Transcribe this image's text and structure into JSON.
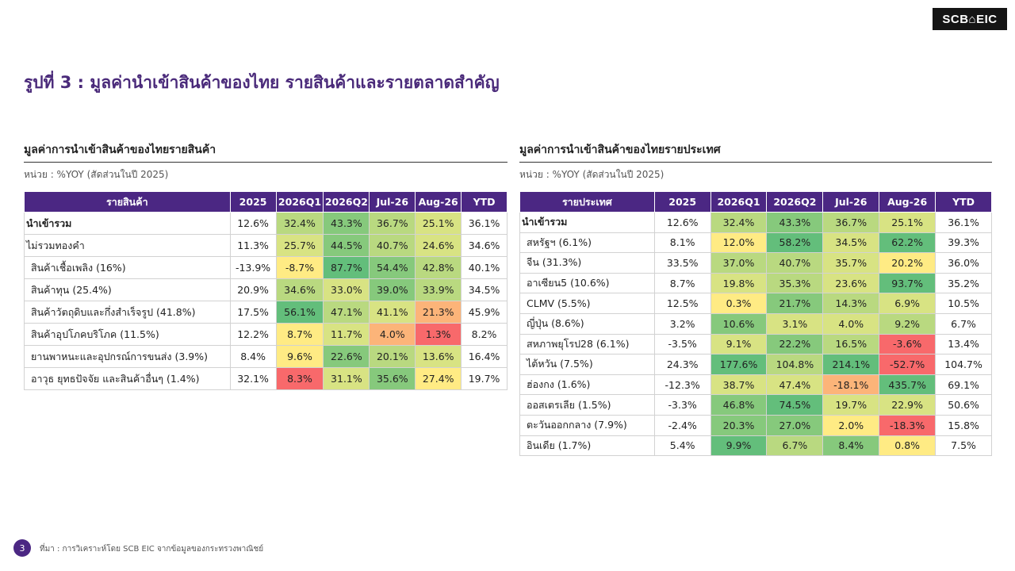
{
  "logo": "SCB⌂EIC",
  "page_title": "รูปที่ 3 : มูลค่านำเข้าสินค้าของไทย รายสินค้าและรายตลาดสำคัญ",
  "page_number": "3",
  "source": "ที่มา : การวิเคราะห์โดย SCB EIC จากข้อมูลของกระทรวงพาณิชย์",
  "colors": {
    "header_bg": "#4b2783",
    "title": "#4a2a7a",
    "scale_dark_green": "#63be7b",
    "scale_green": "#86c97c",
    "scale_light_green": "#b9d980",
    "scale_yellow_green": "#d8e383",
    "scale_yellow": "#ffeb84",
    "scale_orange": "#fcb479",
    "scale_red": "#f8696b"
  },
  "products_table": {
    "title": "มูลค่าการนำเข้าสินค้าของไทยรายสินค้า",
    "unit": "หน่วย : %YOY (สัดส่วนในปี 2025)",
    "columns": [
      "รายสินค้า",
      "2025",
      "2026Q1",
      "2026Q2",
      "Jul-26",
      "Aug-26",
      "YTD"
    ],
    "rows": [
      {
        "label": "นำเข้ารวม",
        "bold": true,
        "indent": false,
        "cells": [
          {
            "v": "12.6%",
            "c": null
          },
          {
            "v": "32.4%",
            "c": "#b9d980"
          },
          {
            "v": "43.3%",
            "c": "#86c97c"
          },
          {
            "v": "36.7%",
            "c": "#b9d980"
          },
          {
            "v": "25.1%",
            "c": "#d8e383"
          },
          {
            "v": "36.1%",
            "c": null
          }
        ]
      },
      {
        "label": "ไม่รวมทองคำ",
        "bold": false,
        "indent": false,
        "cells": [
          {
            "v": "11.3%",
            "c": null
          },
          {
            "v": "25.7%",
            "c": "#d8e383"
          },
          {
            "v": "44.5%",
            "c": "#86c97c"
          },
          {
            "v": "40.7%",
            "c": "#b9d980"
          },
          {
            "v": "24.6%",
            "c": "#d8e383"
          },
          {
            "v": "34.6%",
            "c": null
          }
        ]
      },
      {
        "label": "สินค้าเชื้อเพลิง (16%)",
        "bold": false,
        "indent": true,
        "cells": [
          {
            "v": "-13.9%",
            "c": null
          },
          {
            "v": "-8.7%",
            "c": "#ffeb84"
          },
          {
            "v": "87.7%",
            "c": "#63be7b"
          },
          {
            "v": "54.4%",
            "c": "#86c97c"
          },
          {
            "v": "42.8%",
            "c": "#b9d980"
          },
          {
            "v": "40.1%",
            "c": null
          }
        ]
      },
      {
        "label": "สินค้าทุน (25.4%)",
        "bold": false,
        "indent": true,
        "cells": [
          {
            "v": "20.9%",
            "c": null
          },
          {
            "v": "34.6%",
            "c": "#b9d980"
          },
          {
            "v": "33.0%",
            "c": "#d8e383"
          },
          {
            "v": "39.0%",
            "c": "#86c97c"
          },
          {
            "v": "33.9%",
            "c": "#b9d980"
          },
          {
            "v": "34.5%",
            "c": null
          }
        ]
      },
      {
        "label": "สินค้าวัตถุดิบและกึ่งสำเร็จรูป (41.8%)",
        "bold": false,
        "indent": true,
        "cells": [
          {
            "v": "17.5%",
            "c": null
          },
          {
            "v": "56.1%",
            "c": "#63be7b"
          },
          {
            "v": "47.1%",
            "c": "#b9d980"
          },
          {
            "v": "41.1%",
            "c": "#d8e383"
          },
          {
            "v": "21.3%",
            "c": "#fcb479"
          },
          {
            "v": "45.9%",
            "c": null
          }
        ]
      },
      {
        "label": "สินค้าอุปโภคบริโภค (11.5%)",
        "bold": false,
        "indent": true,
        "cells": [
          {
            "v": "12.2%",
            "c": null
          },
          {
            "v": "8.7%",
            "c": "#ffeb84"
          },
          {
            "v": "11.7%",
            "c": "#d8e383"
          },
          {
            "v": "4.0%",
            "c": "#fcb479"
          },
          {
            "v": "1.3%",
            "c": "#f8696b"
          },
          {
            "v": "8.2%",
            "c": null
          }
        ]
      },
      {
        "label": "ยานพาหนะและอุปกรณ์การขนส่ง (3.9%)",
        "bold": false,
        "indent": true,
        "cells": [
          {
            "v": "8.4%",
            "c": null
          },
          {
            "v": "9.6%",
            "c": "#ffeb84"
          },
          {
            "v": "22.6%",
            "c": "#86c97c"
          },
          {
            "v": "20.1%",
            "c": "#b9d980"
          },
          {
            "v": "13.6%",
            "c": "#d8e383"
          },
          {
            "v": "16.4%",
            "c": null
          }
        ]
      },
      {
        "label": "อาวุธ ยุทธปัจจัย และสินค้าอื่นๆ (1.4%)",
        "bold": false,
        "indent": true,
        "cells": [
          {
            "v": "32.1%",
            "c": null
          },
          {
            "v": "8.3%",
            "c": "#f8696b"
          },
          {
            "v": "31.1%",
            "c": "#d8e383"
          },
          {
            "v": "35.6%",
            "c": "#86c97c"
          },
          {
            "v": "27.4%",
            "c": "#ffeb84"
          },
          {
            "v": "19.7%",
            "c": null
          }
        ]
      }
    ]
  },
  "countries_table": {
    "title": "มูลค่าการนำเข้าสินค้าของไทยรายประเทศ",
    "unit": "หน่วย : %YOY (สัดส่วนในปี 2025)",
    "columns": [
      "รายประเทศ",
      "2025",
      "2026Q1",
      "2026Q2",
      "Jul-26",
      "Aug-26",
      "YTD"
    ],
    "rows": [
      {
        "label": "นำเข้ารวม",
        "bold": true,
        "indent": false,
        "cells": [
          {
            "v": "12.6%",
            "c": null
          },
          {
            "v": "32.4%",
            "c": "#b9d980"
          },
          {
            "v": "43.3%",
            "c": "#86c97c"
          },
          {
            "v": "36.7%",
            "c": "#b9d980"
          },
          {
            "v": "25.1%",
            "c": "#d8e383"
          },
          {
            "v": "36.1%",
            "c": null
          }
        ]
      },
      {
        "label": "สหรัฐฯ (6.1%)",
        "bold": false,
        "indent": true,
        "cells": [
          {
            "v": "8.1%",
            "c": null
          },
          {
            "v": "12.0%",
            "c": "#ffeb84"
          },
          {
            "v": "58.2%",
            "c": "#63be7b"
          },
          {
            "v": "34.5%",
            "c": "#d8e383"
          },
          {
            "v": "62.2%",
            "c": "#63be7b"
          },
          {
            "v": "39.3%",
            "c": null
          }
        ]
      },
      {
        "label": "จีน (31.3%)",
        "bold": false,
        "indent": true,
        "cells": [
          {
            "v": "33.5%",
            "c": null
          },
          {
            "v": "37.0%",
            "c": "#b9d980"
          },
          {
            "v": "40.7%",
            "c": "#b9d980"
          },
          {
            "v": "35.7%",
            "c": "#d8e383"
          },
          {
            "v": "20.2%",
            "c": "#ffeb84"
          },
          {
            "v": "36.0%",
            "c": null
          }
        ]
      },
      {
        "label": "อาเซียน5 (10.6%)",
        "bold": false,
        "indent": true,
        "cells": [
          {
            "v": "8.7%",
            "c": null
          },
          {
            "v": "19.8%",
            "c": "#d8e383"
          },
          {
            "v": "35.3%",
            "c": "#b9d980"
          },
          {
            "v": "23.6%",
            "c": "#d8e383"
          },
          {
            "v": "93.7%",
            "c": "#63be7b"
          },
          {
            "v": "35.2%",
            "c": null
          }
        ]
      },
      {
        "label": "CLMV (5.5%)",
        "bold": false,
        "indent": true,
        "cells": [
          {
            "v": "12.5%",
            "c": null
          },
          {
            "v": "0.3%",
            "c": "#ffeb84"
          },
          {
            "v": "21.7%",
            "c": "#86c97c"
          },
          {
            "v": "14.3%",
            "c": "#b9d980"
          },
          {
            "v": "6.9%",
            "c": "#d8e383"
          },
          {
            "v": "10.5%",
            "c": null
          }
        ]
      },
      {
        "label": "ญี่ปุ่น (8.6%)",
        "bold": false,
        "indent": true,
        "cells": [
          {
            "v": "3.2%",
            "c": null
          },
          {
            "v": "10.6%",
            "c": "#86c97c"
          },
          {
            "v": "3.1%",
            "c": "#d8e383"
          },
          {
            "v": "4.0%",
            "c": "#d8e383"
          },
          {
            "v": "9.2%",
            "c": "#b9d980"
          },
          {
            "v": "6.7%",
            "c": null
          }
        ]
      },
      {
        "label": "สหภาพยุโรป28 (6.1%)",
        "bold": false,
        "indent": true,
        "cells": [
          {
            "v": "-3.5%",
            "c": null
          },
          {
            "v": "9.1%",
            "c": "#d8e383"
          },
          {
            "v": "22.2%",
            "c": "#86c97c"
          },
          {
            "v": "16.5%",
            "c": "#b9d980"
          },
          {
            "v": "-3.6%",
            "c": "#f8696b"
          },
          {
            "v": "13.4%",
            "c": null
          }
        ]
      },
      {
        "label": "ไต้หวัน (7.5%)",
        "bold": false,
        "indent": true,
        "cells": [
          {
            "v": "24.3%",
            "c": null
          },
          {
            "v": "177.6%",
            "c": "#63be7b"
          },
          {
            "v": "104.8%",
            "c": "#b9d980"
          },
          {
            "v": "214.1%",
            "c": "#63be7b"
          },
          {
            "v": "-52.7%",
            "c": "#f8696b"
          },
          {
            "v": "104.7%",
            "c": null
          }
        ]
      },
      {
        "label": "ฮ่องกง (1.6%)",
        "bold": false,
        "indent": true,
        "cells": [
          {
            "v": "-12.3%",
            "c": null
          },
          {
            "v": "38.7%",
            "c": "#d8e383"
          },
          {
            "v": "47.4%",
            "c": "#d8e383"
          },
          {
            "v": "-18.1%",
            "c": "#fcb479"
          },
          {
            "v": "435.7%",
            "c": "#63be7b"
          },
          {
            "v": "69.1%",
            "c": null
          }
        ]
      },
      {
        "label": "ออสเตรเลีย (1.5%)",
        "bold": false,
        "indent": true,
        "cells": [
          {
            "v": "-3.3%",
            "c": null
          },
          {
            "v": "46.8%",
            "c": "#86c97c"
          },
          {
            "v": "74.5%",
            "c": "#63be7b"
          },
          {
            "v": "19.7%",
            "c": "#d8e383"
          },
          {
            "v": "22.9%",
            "c": "#d8e383"
          },
          {
            "v": "50.6%",
            "c": null
          }
        ]
      },
      {
        "label": "ตะวันออกกลาง (7.9%)",
        "bold": false,
        "indent": true,
        "cells": [
          {
            "v": "-2.4%",
            "c": null
          },
          {
            "v": "20.3%",
            "c": "#86c97c"
          },
          {
            "v": "27.0%",
            "c": "#86c97c"
          },
          {
            "v": "2.0%",
            "c": "#ffeb84"
          },
          {
            "v": "-18.3%",
            "c": "#f8696b"
          },
          {
            "v": "15.8%",
            "c": null
          }
        ]
      },
      {
        "label": "อินเดีย (1.7%)",
        "bold": false,
        "indent": true,
        "cells": [
          {
            "v": "5.4%",
            "c": null
          },
          {
            "v": "9.9%",
            "c": "#63be7b"
          },
          {
            "v": "6.7%",
            "c": "#b9d980"
          },
          {
            "v": "8.4%",
            "c": "#86c97c"
          },
          {
            "v": "0.8%",
            "c": "#ffeb84"
          },
          {
            "v": "7.5%",
            "c": null
          }
        ]
      }
    ]
  }
}
